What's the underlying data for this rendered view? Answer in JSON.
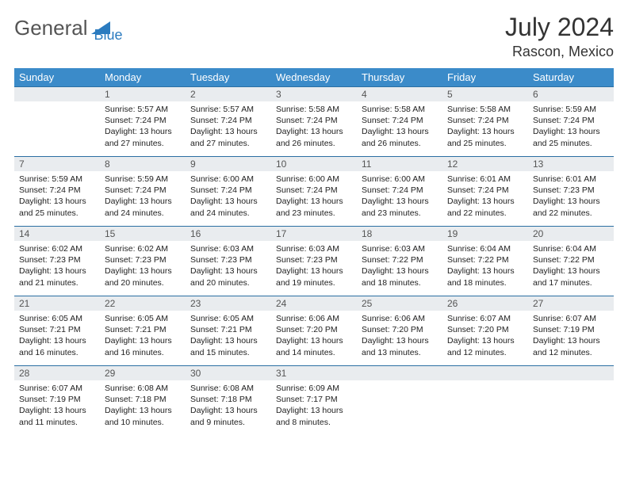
{
  "logo": {
    "part1": "General",
    "part2": "Blue",
    "color1": "#555555",
    "color2": "#2b7bbf"
  },
  "title": "July 2024",
  "subtitle": "Rascon, Mexico",
  "header_bg": "#3b8bc9",
  "daynum_bg": "#e9ecef",
  "row_border": "#2b6fa3",
  "weekdays": [
    "Sunday",
    "Monday",
    "Tuesday",
    "Wednesday",
    "Thursday",
    "Friday",
    "Saturday"
  ],
  "weeks": [
    [
      {
        "n": "",
        "lines": []
      },
      {
        "n": "1",
        "lines": [
          "Sunrise: 5:57 AM",
          "Sunset: 7:24 PM",
          "Daylight: 13 hours and 27 minutes."
        ]
      },
      {
        "n": "2",
        "lines": [
          "Sunrise: 5:57 AM",
          "Sunset: 7:24 PM",
          "Daylight: 13 hours and 27 minutes."
        ]
      },
      {
        "n": "3",
        "lines": [
          "Sunrise: 5:58 AM",
          "Sunset: 7:24 PM",
          "Daylight: 13 hours and 26 minutes."
        ]
      },
      {
        "n": "4",
        "lines": [
          "Sunrise: 5:58 AM",
          "Sunset: 7:24 PM",
          "Daylight: 13 hours and 26 minutes."
        ]
      },
      {
        "n": "5",
        "lines": [
          "Sunrise: 5:58 AM",
          "Sunset: 7:24 PM",
          "Daylight: 13 hours and 25 minutes."
        ]
      },
      {
        "n": "6",
        "lines": [
          "Sunrise: 5:59 AM",
          "Sunset: 7:24 PM",
          "Daylight: 13 hours and 25 minutes."
        ]
      }
    ],
    [
      {
        "n": "7",
        "lines": [
          "Sunrise: 5:59 AM",
          "Sunset: 7:24 PM",
          "Daylight: 13 hours and 25 minutes."
        ]
      },
      {
        "n": "8",
        "lines": [
          "Sunrise: 5:59 AM",
          "Sunset: 7:24 PM",
          "Daylight: 13 hours and 24 minutes."
        ]
      },
      {
        "n": "9",
        "lines": [
          "Sunrise: 6:00 AM",
          "Sunset: 7:24 PM",
          "Daylight: 13 hours and 24 minutes."
        ]
      },
      {
        "n": "10",
        "lines": [
          "Sunrise: 6:00 AM",
          "Sunset: 7:24 PM",
          "Daylight: 13 hours and 23 minutes."
        ]
      },
      {
        "n": "11",
        "lines": [
          "Sunrise: 6:00 AM",
          "Sunset: 7:24 PM",
          "Daylight: 13 hours and 23 minutes."
        ]
      },
      {
        "n": "12",
        "lines": [
          "Sunrise: 6:01 AM",
          "Sunset: 7:24 PM",
          "Daylight: 13 hours and 22 minutes."
        ]
      },
      {
        "n": "13",
        "lines": [
          "Sunrise: 6:01 AM",
          "Sunset: 7:23 PM",
          "Daylight: 13 hours and 22 minutes."
        ]
      }
    ],
    [
      {
        "n": "14",
        "lines": [
          "Sunrise: 6:02 AM",
          "Sunset: 7:23 PM",
          "Daylight: 13 hours and 21 minutes."
        ]
      },
      {
        "n": "15",
        "lines": [
          "Sunrise: 6:02 AM",
          "Sunset: 7:23 PM",
          "Daylight: 13 hours and 20 minutes."
        ]
      },
      {
        "n": "16",
        "lines": [
          "Sunrise: 6:03 AM",
          "Sunset: 7:23 PM",
          "Daylight: 13 hours and 20 minutes."
        ]
      },
      {
        "n": "17",
        "lines": [
          "Sunrise: 6:03 AM",
          "Sunset: 7:23 PM",
          "Daylight: 13 hours and 19 minutes."
        ]
      },
      {
        "n": "18",
        "lines": [
          "Sunrise: 6:03 AM",
          "Sunset: 7:22 PM",
          "Daylight: 13 hours and 18 minutes."
        ]
      },
      {
        "n": "19",
        "lines": [
          "Sunrise: 6:04 AM",
          "Sunset: 7:22 PM",
          "Daylight: 13 hours and 18 minutes."
        ]
      },
      {
        "n": "20",
        "lines": [
          "Sunrise: 6:04 AM",
          "Sunset: 7:22 PM",
          "Daylight: 13 hours and 17 minutes."
        ]
      }
    ],
    [
      {
        "n": "21",
        "lines": [
          "Sunrise: 6:05 AM",
          "Sunset: 7:21 PM",
          "Daylight: 13 hours and 16 minutes."
        ]
      },
      {
        "n": "22",
        "lines": [
          "Sunrise: 6:05 AM",
          "Sunset: 7:21 PM",
          "Daylight: 13 hours and 16 minutes."
        ]
      },
      {
        "n": "23",
        "lines": [
          "Sunrise: 6:05 AM",
          "Sunset: 7:21 PM",
          "Daylight: 13 hours and 15 minutes."
        ]
      },
      {
        "n": "24",
        "lines": [
          "Sunrise: 6:06 AM",
          "Sunset: 7:20 PM",
          "Daylight: 13 hours and 14 minutes."
        ]
      },
      {
        "n": "25",
        "lines": [
          "Sunrise: 6:06 AM",
          "Sunset: 7:20 PM",
          "Daylight: 13 hours and 13 minutes."
        ]
      },
      {
        "n": "26",
        "lines": [
          "Sunrise: 6:07 AM",
          "Sunset: 7:20 PM",
          "Daylight: 13 hours and 12 minutes."
        ]
      },
      {
        "n": "27",
        "lines": [
          "Sunrise: 6:07 AM",
          "Sunset: 7:19 PM",
          "Daylight: 13 hours and 12 minutes."
        ]
      }
    ],
    [
      {
        "n": "28",
        "lines": [
          "Sunrise: 6:07 AM",
          "Sunset: 7:19 PM",
          "Daylight: 13 hours and 11 minutes."
        ]
      },
      {
        "n": "29",
        "lines": [
          "Sunrise: 6:08 AM",
          "Sunset: 7:18 PM",
          "Daylight: 13 hours and 10 minutes."
        ]
      },
      {
        "n": "30",
        "lines": [
          "Sunrise: 6:08 AM",
          "Sunset: 7:18 PM",
          "Daylight: 13 hours and 9 minutes."
        ]
      },
      {
        "n": "31",
        "lines": [
          "Sunrise: 6:09 AM",
          "Sunset: 7:17 PM",
          "Daylight: 13 hours and 8 minutes."
        ]
      },
      {
        "n": "",
        "lines": []
      },
      {
        "n": "",
        "lines": []
      },
      {
        "n": "",
        "lines": []
      }
    ]
  ]
}
